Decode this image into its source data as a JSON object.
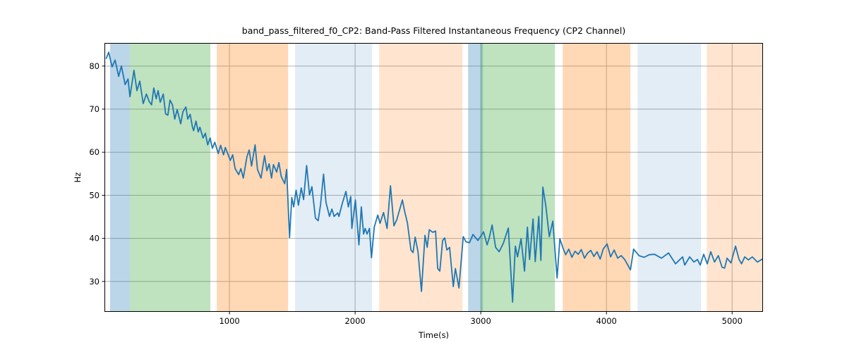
{
  "title": "band_pass_filtered_f0_CP2: Band-Pass Filtered Instantaneous Frequency (CP2 Channel)",
  "xlabel": "Time(s)",
  "ylabel": "Hz",
  "chart_data": {
    "type": "line",
    "title": "band_pass_filtered_f0_CP2: Band-Pass Filtered Instantaneous Frequency (CP2 Channel)",
    "xlabel": "Time(s)",
    "ylabel": "Hz",
    "xlim": [
      11,
      5240
    ],
    "ylim": [
      23.1,
      85.2
    ],
    "xticks": [
      1000,
      2000,
      3000,
      4000,
      5000
    ],
    "yticks": [
      30,
      40,
      50,
      60,
      70,
      80
    ],
    "grid": true,
    "grid_color": "#b0b0b0",
    "line_color": "#1f77b4",
    "line_width": 1.8,
    "legend": "none",
    "bands": [
      {
        "x0": 50,
        "x1": 208,
        "color": "rgba(31,119,180,0.30)"
      },
      {
        "x0": 208,
        "x1": 848,
        "color": "rgba(44,160,44,0.30)"
      },
      {
        "x0": 899,
        "x1": 1466,
        "color": "rgba(255,127,14,0.30)"
      },
      {
        "x0": 1522,
        "x1": 2135,
        "color": "rgba(31,119,180,0.13)"
      },
      {
        "x0": 2191,
        "x1": 2854,
        "color": "rgba(255,127,14,0.20)"
      },
      {
        "x0": 2899,
        "x1": 3017,
        "color": "rgba(31,119,180,0.30)"
      },
      {
        "x0": 3000,
        "x1": 3590,
        "color": "rgba(44,160,44,0.30)"
      },
      {
        "x0": 3652,
        "x1": 4191,
        "color": "rgba(255,127,14,0.30)"
      },
      {
        "x0": 4247,
        "x1": 4753,
        "color": "rgba(31,119,180,0.13)"
      },
      {
        "x0": 4798,
        "x1": 5242,
        "color": "rgba(255,127,14,0.20)"
      }
    ],
    "series": [
      {
        "name": "band_pass_filtered_f0_CP2",
        "x": [
          20,
          39,
          66,
          90,
          118,
          140,
          170,
          193,
          208,
          240,
          264,
          286,
          314,
          339,
          361,
          380,
          398,
          417,
          432,
          449,
          473,
          492,
          510,
          527,
          546,
          565,
          584,
          612,
          630,
          653,
          668,
          687,
          706,
          715,
          734,
          752,
          765,
          790,
          808,
          827,
          846,
          864,
          883,
          911,
          930,
          953,
          967,
          1007,
          1026,
          1045,
          1073,
          1091,
          1110,
          1139,
          1157,
          1176,
          1204,
          1223,
          1251,
          1279,
          1298,
          1316,
          1335,
          1350,
          1375,
          1393,
          1412,
          1440,
          1455,
          1478,
          1496,
          1511,
          1530,
          1549,
          1571,
          1590,
          1614,
          1637,
          1656,
          1684,
          1706,
          1725,
          1749,
          1768,
          1796,
          1815,
          1833,
          1861,
          1871,
          1899,
          1927,
          1946,
          1965,
          1974,
          2002,
          2030,
          2049,
          2067,
          2080,
          2095,
          2114,
          2130,
          2152,
          2180,
          2198,
          2226,
          2254,
          2281,
          2309,
          2331,
          2376,
          2393,
          2416,
          2444,
          2461,
          2478,
          2500,
          2528,
          2556,
          2573,
          2590,
          2618,
          2640,
          2657,
          2674,
          2696,
          2713,
          2730,
          2752,
          2781,
          2798,
          2826,
          2860,
          2882,
          2910,
          2938,
          2977,
          3022,
          3050,
          3067,
          3090,
          3118,
          3146,
          3180,
          3219,
          3253,
          3275,
          3292,
          3320,
          3348,
          3371,
          3388,
          3416,
          3433,
          3461,
          3478,
          3494,
          3517,
          3545,
          3573,
          3607,
          3629,
          3652,
          3675,
          3700,
          3725,
          3750,
          3775,
          3800,
          3825,
          3850,
          3875,
          3900,
          3925,
          3950,
          3975,
          4005,
          4033,
          4061,
          4089,
          4117,
          4145,
          4191,
          4216,
          4258,
          4300,
          4340,
          4382,
          4438,
          4494,
          4550,
          4606,
          4623,
          4662,
          4696,
          4724,
          4746,
          4774,
          4802,
          4830,
          4860,
          4890,
          4920,
          4940,
          4960,
          4990,
          5027,
          5055,
          5075,
          5100,
          5130,
          5160,
          5201,
          5240
        ],
        "y": [
          81.8,
          83.2,
          79.8,
          81.4,
          77.6,
          80.0,
          75.7,
          77.0,
          72.9,
          79.0,
          74.3,
          76.5,
          71.3,
          73.5,
          71.8,
          71.0,
          74.9,
          72.4,
          74.3,
          71.6,
          73.5,
          68.9,
          68.6,
          72.1,
          71.0,
          67.7,
          69.9,
          66.6,
          69.4,
          70.5,
          67.7,
          68.8,
          65.8,
          65.0,
          67.2,
          64.7,
          65.8,
          63.3,
          64.4,
          61.7,
          63.3,
          60.9,
          62.3,
          59.7,
          61.6,
          59.4,
          61.1,
          58.1,
          59.4,
          56.2,
          54.8,
          56.2,
          54.0,
          58.9,
          60.5,
          56.8,
          61.7,
          56.0,
          54.0,
          59.2,
          55.7,
          57.3,
          54.0,
          57.1,
          55.4,
          57.6,
          54.4,
          52.7,
          56.0,
          40.2,
          49.5,
          47.3,
          51.2,
          47.7,
          51.7,
          49.0,
          56.9,
          50.1,
          52.0,
          44.7,
          44.1,
          47.9,
          54.9,
          48.4,
          45.1,
          46.8,
          45.1,
          45.9,
          45.1,
          48.2,
          50.9,
          47.3,
          49.7,
          42.3,
          48.9,
          38.5,
          47.3,
          41.0,
          42.3,
          41.0,
          42.3,
          35.5,
          42.6,
          45.4,
          43.5,
          46.0,
          42.3,
          52.2,
          42.9,
          44.3,
          48.9,
          46.4,
          43.6,
          37.3,
          36.7,
          40.3,
          36.9,
          27.7,
          40.7,
          37.9,
          42.0,
          41.4,
          41.7,
          33.0,
          32.4,
          39.5,
          40.1,
          37.3,
          37.9,
          28.8,
          33.0,
          28.5,
          40.4,
          39.2,
          39.0,
          40.9,
          39.5,
          41.5,
          38.5,
          40.1,
          43.1,
          37.9,
          36.9,
          38.9,
          42.4,
          25.2,
          38.2,
          35.7,
          39.9,
          32.4,
          42.6,
          35.1,
          44.5,
          34.6,
          45.1,
          34.9,
          51.9,
          47.7,
          40.4,
          44.0,
          30.8,
          39.9,
          37.9,
          36.2,
          37.5,
          35.6,
          37.0,
          36.3,
          37.4,
          35.4,
          36.6,
          37.2,
          35.8,
          36.9,
          35.2,
          37.6,
          38.7,
          35.7,
          37.3,
          35.4,
          36.0,
          35.1,
          32.7,
          37.5,
          36.0,
          35.6,
          36.2,
          36.3,
          35.4,
          36.6,
          34.1,
          35.7,
          33.8,
          35.7,
          34.5,
          35.1,
          33.8,
          36.3,
          34.1,
          36.9,
          34.5,
          36.0,
          33.3,
          33.1,
          35.4,
          34.3,
          38.2,
          35.1,
          34.1,
          35.7,
          35.0,
          35.7,
          34.5,
          35.2
        ]
      }
    ]
  }
}
